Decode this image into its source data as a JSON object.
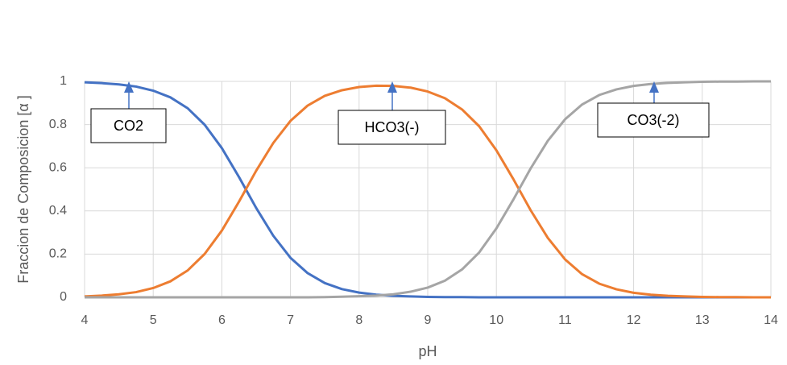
{
  "chart_data": {
    "type": "line",
    "x_label": "pH",
    "y_label": "Fraccion de Composicion [α ]",
    "x": [
      4,
      4.25,
      4.5,
      4.75,
      5,
      5.25,
      5.5,
      5.75,
      6,
      6.25,
      6.5,
      6.75,
      7,
      7.25,
      7.5,
      7.75,
      8,
      8.25,
      8.5,
      8.75,
      9,
      9.25,
      9.5,
      9.75,
      10,
      10.25,
      10.5,
      10.75,
      11,
      11.25,
      11.5,
      11.75,
      12,
      12.25,
      12.5,
      12.75,
      13,
      13.25,
      13.5,
      13.75,
      14
    ],
    "series": [
      {
        "name": "CO2",
        "color": "#4472c4",
        "values": [
          0.996,
          0.992,
          0.986,
          0.976,
          0.957,
          0.926,
          0.876,
          0.799,
          0.691,
          0.557,
          0.414,
          0.285,
          0.183,
          0.112,
          0.066,
          0.038,
          0.022,
          0.012,
          0.007,
          0.004,
          0.002,
          0.001,
          0.001,
          0,
          0,
          0,
          0,
          0,
          0,
          0,
          0,
          0,
          0,
          0,
          0,
          0,
          0,
          0,
          0,
          0,
          0
        ]
      },
      {
        "name": "HCO3(-)",
        "color": "#ed7d31",
        "values": [
          0.004,
          0.008,
          0.014,
          0.024,
          0.043,
          0.074,
          0.124,
          0.201,
          0.309,
          0.443,
          0.586,
          0.715,
          0.817,
          0.888,
          0.933,
          0.959,
          0.974,
          0.98,
          0.979,
          0.971,
          0.953,
          0.922,
          0.87,
          0.792,
          0.681,
          0.546,
          0.403,
          0.275,
          0.176,
          0.107,
          0.063,
          0.037,
          0.021,
          0.012,
          0.007,
          0.004,
          0.002,
          0.001,
          0.001,
          0,
          0
        ]
      },
      {
        "name": "CO3(-2)",
        "color": "#a5a5a5",
        "values": [
          0,
          0,
          0,
          0,
          0,
          0,
          0,
          0,
          0,
          0,
          0,
          0,
          0,
          0,
          0.001,
          0.003,
          0.005,
          0.008,
          0.014,
          0.026,
          0.045,
          0.077,
          0.129,
          0.208,
          0.319,
          0.454,
          0.597,
          0.725,
          0.824,
          0.893,
          0.937,
          0.963,
          0.979,
          0.988,
          0.993,
          0.996,
          0.998,
          0.999,
          0.999,
          1,
          1
        ]
      }
    ],
    "annotations": [
      "CO2",
      "HCO3(-)",
      "CO3(-2)"
    ],
    "xlim": [
      4,
      14
    ],
    "xticks": [
      4,
      5,
      6,
      7,
      8,
      9,
      10,
      11,
      12,
      13,
      14
    ],
    "ylim": [
      0,
      1
    ],
    "yticks": [
      0,
      0.2,
      0.4,
      0.6,
      0.8,
      1
    ],
    "grid": true
  }
}
